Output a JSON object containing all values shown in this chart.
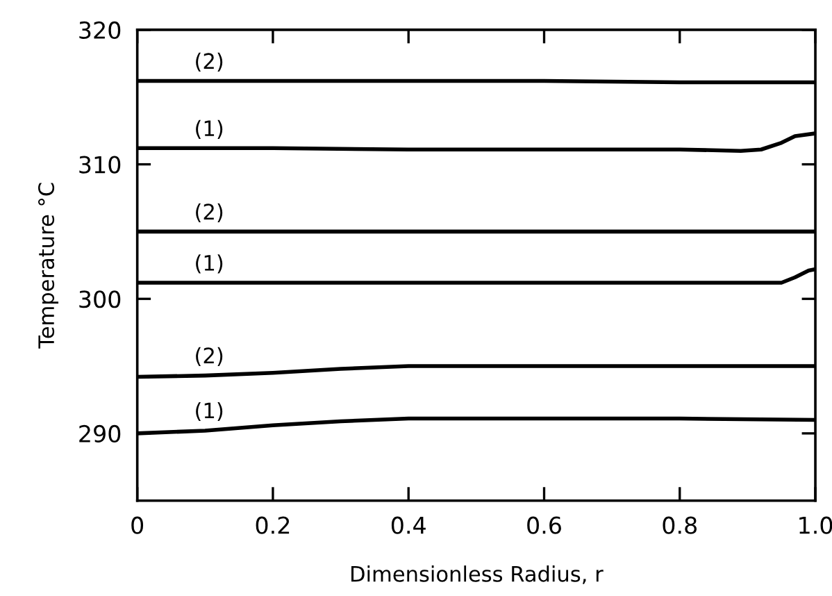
{
  "chart_data": {
    "type": "line",
    "xlabel": "Dimensionless Radius, r",
    "ylabel": "Temperature °C",
    "xlim": [
      0,
      1.0
    ],
    "xticks": [
      0,
      0.2,
      0.4,
      0.6,
      0.8,
      {
        "value": 1.0,
        "label": "1.0"
      }
    ],
    "ylim": [
      285,
      320
    ],
    "yticks": [
      290,
      300,
      310,
      320
    ],
    "grid": false,
    "legend": false,
    "marker": "none",
    "line_style": "solid",
    "series": [
      {
        "name": "(2)",
        "color": "#000000",
        "x": [
          0,
          0.2,
          0.4,
          0.6,
          0.8,
          1.0
        ],
        "values": [
          316.2,
          316.2,
          316.2,
          316.2,
          316.1,
          316.1
        ]
      },
      {
        "name": "(1)",
        "color": "#000000",
        "x": [
          0,
          0.2,
          0.4,
          0.6,
          0.8,
          0.89,
          0.92,
          0.95,
          0.97,
          1.0
        ],
        "values": [
          311.2,
          311.2,
          311.1,
          311.1,
          311.1,
          311.0,
          311.1,
          311.6,
          312.1,
          312.3
        ]
      },
      {
        "name": "(2)",
        "color": "#000000",
        "x": [
          0,
          0.2,
          0.4,
          0.6,
          0.8,
          1.0
        ],
        "values": [
          305.0,
          305.0,
          305.0,
          305.0,
          305.0,
          305.0
        ]
      },
      {
        "name": "(1)",
        "color": "#000000",
        "x": [
          0,
          0.2,
          0.4,
          0.6,
          0.8,
          0.95,
          0.97,
          0.99,
          1.0
        ],
        "values": [
          301.2,
          301.2,
          301.2,
          301.2,
          301.2,
          301.2,
          301.6,
          302.1,
          302.2
        ]
      },
      {
        "name": "(2)",
        "color": "#000000",
        "x": [
          0,
          0.1,
          0.2,
          0.3,
          0.4,
          0.5,
          0.6,
          0.8,
          1.0
        ],
        "values": [
          294.2,
          294.3,
          294.5,
          294.8,
          295.0,
          295.0,
          295.0,
          295.0,
          295.0
        ]
      },
      {
        "name": "(1)",
        "color": "#000000",
        "x": [
          0,
          0.1,
          0.2,
          0.3,
          0.4,
          0.5,
          0.6,
          0.8,
          1.0
        ],
        "values": [
          290.0,
          290.2,
          290.6,
          290.9,
          291.1,
          291.1,
          291.1,
          291.1,
          291.0
        ]
      }
    ]
  }
}
